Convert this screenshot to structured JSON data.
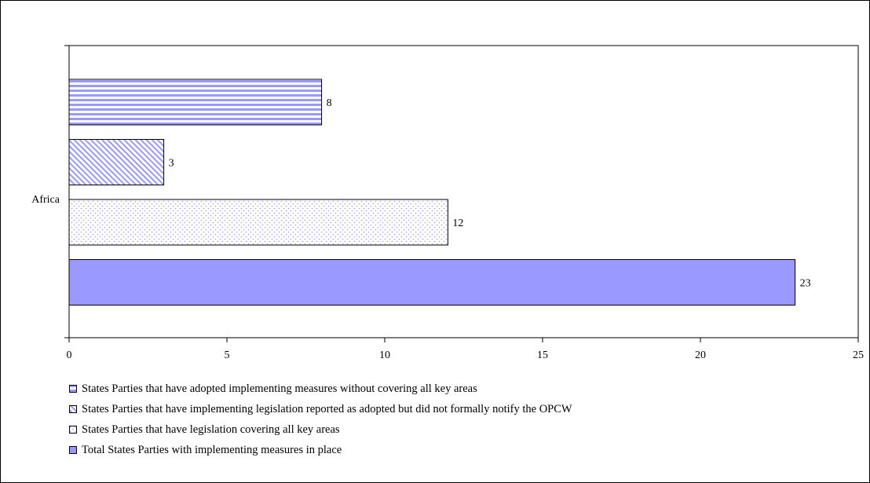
{
  "chart_data": {
    "type": "bar",
    "orientation": "horizontal",
    "categories": [
      "Africa"
    ],
    "series": [
      {
        "name": "States Parties that have adopted implementing measures without covering all key areas",
        "values": [
          8
        ],
        "pattern": "horizontal-stripes",
        "color": "#9999ff"
      },
      {
        "name": "States Parties that have implementing legislation reported as adopted but did not formally notify the OPCW",
        "values": [
          3
        ],
        "pattern": "diagonal-hatch",
        "color": "#9999ff"
      },
      {
        "name": "States Parties that have legislation covering all key areas",
        "values": [
          12
        ],
        "pattern": "dots",
        "color": "#9999ff"
      },
      {
        "name": "Total States Parties with implementing measures in place",
        "values": [
          23
        ],
        "pattern": "solid",
        "color": "#9999ff"
      }
    ],
    "xlim": [
      0,
      25
    ],
    "xticks": [
      0,
      5,
      10,
      15,
      20,
      25
    ],
    "grid": false,
    "legend_position": "bottom-left"
  }
}
